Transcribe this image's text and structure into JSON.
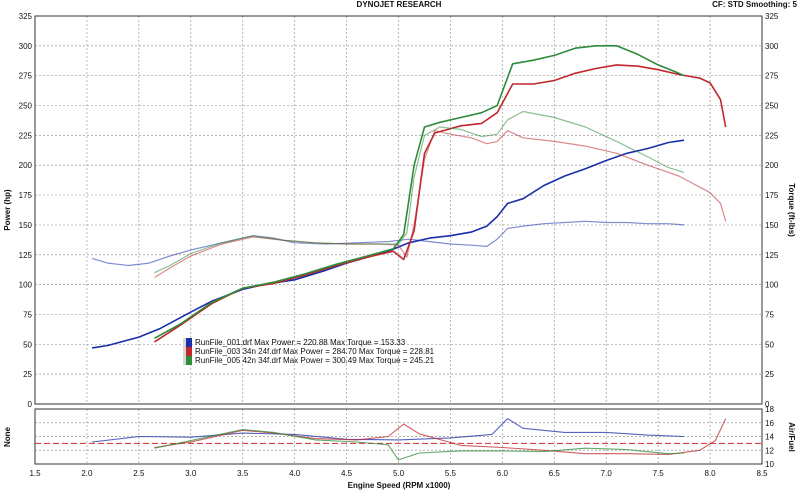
{
  "header": {
    "title": "DYNOJET RESEARCH",
    "status": "CF: STD   Smoothing: 5"
  },
  "colors": {
    "blue": "#1a2fa8",
    "red": "#c0282c",
    "green": "#2e8b3a",
    "afr_ref": "#d23030",
    "grid": "#9a9a9a",
    "bg": "#ffffff"
  },
  "chart_data": [
    {
      "type": "line",
      "xlabel": "Engine Speed (RPM x1000)",
      "ylabel": "Power (hp)",
      "y2label": "Torque (ft-lbs)",
      "xlim": [
        1.5,
        8.5
      ],
      "ylim": [
        0,
        325
      ],
      "y2lim": [
        0,
        325
      ],
      "x_ticks": [
        "1.5",
        "2.0",
        "2.5",
        "3.0",
        "3.5",
        "4.0",
        "4.5",
        "5.0",
        "5.5",
        "6.0",
        "6.5",
        "7.0",
        "7.5",
        "8.0",
        "8.5"
      ],
      "y_ticks": [
        "0",
        "25",
        "50",
        "75",
        "100",
        "125",
        "150",
        "175",
        "200",
        "225",
        "250",
        "275",
        "300",
        "325"
      ],
      "y2_ticks": [
        "0",
        "25",
        "50",
        "75",
        "100",
        "125",
        "150",
        "175",
        "200",
        "225",
        "250",
        "275",
        "300",
        "325"
      ],
      "grid": true,
      "legend_position": "lower-left",
      "series": [
        {
          "name": "RunFile_001.drf Max Power = 220.88 Max Torque = 153.33",
          "color": "#1a2fa8",
          "kind": "power",
          "points": [
            [
              2.05,
              47
            ],
            [
              2.2,
              49
            ],
            [
              2.5,
              56
            ],
            [
              2.7,
              63
            ],
            [
              3.0,
              77
            ],
            [
              3.2,
              86
            ],
            [
              3.5,
              96
            ],
            [
              3.7,
              100
            ],
            [
              4.0,
              104
            ],
            [
              4.3,
              112
            ],
            [
              4.5,
              118
            ],
            [
              4.7,
              123
            ],
            [
              4.9,
              128
            ],
            [
              5.1,
              135
            ],
            [
              5.3,
              139
            ],
            [
              5.5,
              141
            ],
            [
              5.7,
              144
            ],
            [
              5.85,
              149
            ],
            [
              5.95,
              157
            ],
            [
              6.05,
              168
            ],
            [
              6.2,
              172
            ],
            [
              6.4,
              183
            ],
            [
              6.6,
              191
            ],
            [
              6.8,
              197
            ],
            [
              7.0,
              204
            ],
            [
              7.2,
              210
            ],
            [
              7.4,
              214
            ],
            [
              7.6,
              219
            ],
            [
              7.75,
              221
            ]
          ]
        },
        {
          "name": "RunFile_001.drf Max Power = 220.88 Max Torque = 153.33",
          "color": "#1a2fa8",
          "kind": "torque",
          "points": [
            [
              2.05,
              122
            ],
            [
              2.2,
              118
            ],
            [
              2.4,
              116
            ],
            [
              2.6,
              118
            ],
            [
              2.8,
              124
            ],
            [
              3.0,
              129
            ],
            [
              3.2,
              133
            ],
            [
              3.4,
              137
            ],
            [
              3.6,
              141
            ],
            [
              3.8,
              139
            ],
            [
              4.0,
              135
            ],
            [
              4.3,
              134
            ],
            [
              4.6,
              135
            ],
            [
              4.9,
              136
            ],
            [
              5.1,
              138
            ],
            [
              5.3,
              136
            ],
            [
              5.5,
              134
            ],
            [
              5.7,
              133
            ],
            [
              5.85,
              132
            ],
            [
              5.95,
              138
            ],
            [
              6.05,
              147
            ],
            [
              6.2,
              149
            ],
            [
              6.4,
              151
            ],
            [
              6.6,
              152
            ],
            [
              6.8,
              153
            ],
            [
              7.0,
              152
            ],
            [
              7.2,
              152
            ],
            [
              7.4,
              151
            ],
            [
              7.6,
              151
            ],
            [
              7.75,
              150
            ]
          ]
        },
        {
          "name": "RunFile_003 34n 24f.drf Max Power = 284.70 Max Torque = 228.81",
          "color": "#c0282c",
          "kind": "power",
          "points": [
            [
              2.65,
              52
            ],
            [
              2.9,
              66
            ],
            [
              3.2,
              84
            ],
            [
              3.5,
              97
            ],
            [
              3.8,
              101
            ],
            [
              4.1,
              108
            ],
            [
              4.4,
              116
            ],
            [
              4.7,
              123
            ],
            [
              4.95,
              128
            ],
            [
              5.05,
              121
            ],
            [
              5.15,
              145
            ],
            [
              5.25,
              210
            ],
            [
              5.35,
              227
            ],
            [
              5.6,
              233
            ],
            [
              5.8,
              235
            ],
            [
              5.95,
              244
            ],
            [
              6.1,
              268
            ],
            [
              6.3,
              268
            ],
            [
              6.5,
              271
            ],
            [
              6.7,
              277
            ],
            [
              6.9,
              281
            ],
            [
              7.1,
              284
            ],
            [
              7.3,
              283
            ],
            [
              7.5,
              280
            ],
            [
              7.7,
              276
            ],
            [
              7.9,
              273
            ],
            [
              8.0,
              269
            ],
            [
              8.1,
              255
            ],
            [
              8.15,
              232
            ]
          ]
        },
        {
          "name": "RunFile_003 34n 24f.drf Max Power = 284.70 Max Torque = 228.81",
          "color": "#c0282c",
          "kind": "torque",
          "points": [
            [
              2.65,
              106
            ],
            [
              2.8,
              114
            ],
            [
              3.0,
              124
            ],
            [
              3.3,
              134
            ],
            [
              3.6,
              140
            ],
            [
              3.9,
              137
            ],
            [
              4.2,
              135
            ],
            [
              4.5,
              134
            ],
            [
              4.8,
              134
            ],
            [
              5.0,
              133
            ],
            [
              5.08,
              123
            ],
            [
              5.15,
              150
            ],
            [
              5.25,
              205
            ],
            [
              5.35,
              229
            ],
            [
              5.5,
              226
            ],
            [
              5.7,
              223
            ],
            [
              5.85,
              218
            ],
            [
              5.95,
              220
            ],
            [
              6.05,
              229
            ],
            [
              6.2,
              223
            ],
            [
              6.5,
              220
            ],
            [
              6.8,
              216
            ],
            [
              7.1,
              210
            ],
            [
              7.4,
              200
            ],
            [
              7.7,
              191
            ],
            [
              8.0,
              177
            ],
            [
              8.1,
              168
            ],
            [
              8.15,
              153
            ]
          ]
        },
        {
          "name": "RunFile_005 42n 34f.drf Max Power = 300.49 Max Torque = 245.21",
          "color": "#2e8b3a",
          "kind": "power",
          "points": [
            [
              2.65,
              55
            ],
            [
              2.9,
              67
            ],
            [
              3.2,
              85
            ],
            [
              3.5,
              97
            ],
            [
              3.8,
              102
            ],
            [
              4.1,
              109
            ],
            [
              4.4,
              117
            ],
            [
              4.7,
              124
            ],
            [
              4.95,
              130
            ],
            [
              5.05,
              142
            ],
            [
              5.15,
              200
            ],
            [
              5.25,
              232
            ],
            [
              5.4,
              236
            ],
            [
              5.6,
              240
            ],
            [
              5.8,
              244
            ],
            [
              5.95,
              250
            ],
            [
              6.1,
              285
            ],
            [
              6.3,
              288
            ],
            [
              6.5,
              292
            ],
            [
              6.7,
              298
            ],
            [
              6.9,
              300
            ],
            [
              7.1,
              300
            ],
            [
              7.3,
              293
            ],
            [
              7.5,
              284
            ],
            [
              7.7,
              277
            ],
            [
              7.75,
              275
            ]
          ]
        },
        {
          "name": "RunFile_005 42n 34f.drf Max Power = 300.49 Max Torque = 245.21",
          "color": "#2e8b3a",
          "kind": "torque",
          "points": [
            [
              2.65,
              110
            ],
            [
              2.8,
              116
            ],
            [
              3.0,
              126
            ],
            [
              3.3,
              135
            ],
            [
              3.6,
              141
            ],
            [
              3.9,
              137
            ],
            [
              4.2,
              135
            ],
            [
              4.5,
              134
            ],
            [
              4.8,
              134
            ],
            [
              5.0,
              134
            ],
            [
              5.08,
              143
            ],
            [
              5.15,
              190
            ],
            [
              5.25,
              225
            ],
            [
              5.4,
              232
            ],
            [
              5.6,
              230
            ],
            [
              5.8,
              224
            ],
            [
              5.95,
              226
            ],
            [
              6.05,
              238
            ],
            [
              6.2,
              245
            ],
            [
              6.5,
              240
            ],
            [
              6.8,
              232
            ],
            [
              7.1,
              220
            ],
            [
              7.4,
              207
            ],
            [
              7.6,
              198
            ],
            [
              7.75,
              194
            ]
          ]
        }
      ]
    },
    {
      "type": "line",
      "ylabel": "None",
      "y2label": "Air/Fuel",
      "xlim": [
        1.5,
        8.5
      ],
      "ylim": [
        10,
        18
      ],
      "y2_ticks": [
        "10",
        "12",
        "14",
        "16",
        "18"
      ],
      "reference_line": 13,
      "series": [
        {
          "name": "RunFile_001.drf",
          "color": "#1a2fa8",
          "points": [
            [
              2.05,
              13.2
            ],
            [
              2.5,
              14.0
            ],
            [
              3.0,
              13.9
            ],
            [
              3.5,
              14.5
            ],
            [
              4.0,
              14.3
            ],
            [
              4.5,
              13.6
            ],
            [
              5.0,
              13.5
            ],
            [
              5.5,
              13.8
            ],
            [
              5.9,
              14.3
            ],
            [
              6.05,
              16.6
            ],
            [
              6.2,
              15.2
            ],
            [
              6.6,
              14.6
            ],
            [
              7.0,
              14.6
            ],
            [
              7.4,
              14.2
            ],
            [
              7.75,
              14.0
            ]
          ]
        },
        {
          "name": "RunFile_003 34n 24f.drf",
          "color": "#c0282c",
          "points": [
            [
              2.65,
              12.4
            ],
            [
              3.0,
              13.2
            ],
            [
              3.5,
              14.9
            ],
            [
              3.8,
              14.5
            ],
            [
              4.2,
              13.7
            ],
            [
              4.6,
              13.5
            ],
            [
              4.9,
              14.0
            ],
            [
              5.05,
              15.8
            ],
            [
              5.2,
              14.4
            ],
            [
              5.6,
              12.7
            ],
            [
              6.0,
              12.4
            ],
            [
              6.4,
              12.0
            ],
            [
              6.8,
              11.5
            ],
            [
              7.2,
              11.5
            ],
            [
              7.6,
              11.4
            ],
            [
              7.9,
              12.0
            ],
            [
              8.05,
              13.4
            ],
            [
              8.15,
              16.6
            ]
          ]
        },
        {
          "name": "RunFile_005 42n 34f.drf",
          "color": "#2e8b3a",
          "points": [
            [
              2.65,
              12.3
            ],
            [
              3.0,
              13.4
            ],
            [
              3.5,
              15.0
            ],
            [
              3.8,
              14.6
            ],
            [
              4.2,
              13.5
            ],
            [
              4.6,
              13.2
            ],
            [
              4.9,
              12.8
            ],
            [
              5.0,
              10.6
            ],
            [
              5.2,
              11.6
            ],
            [
              5.6,
              11.9
            ],
            [
              6.0,
              11.9
            ],
            [
              6.4,
              11.8
            ],
            [
              6.8,
              12.3
            ],
            [
              7.2,
              12.1
            ],
            [
              7.6,
              11.5
            ],
            [
              7.75,
              11.6
            ]
          ]
        }
      ]
    }
  ]
}
